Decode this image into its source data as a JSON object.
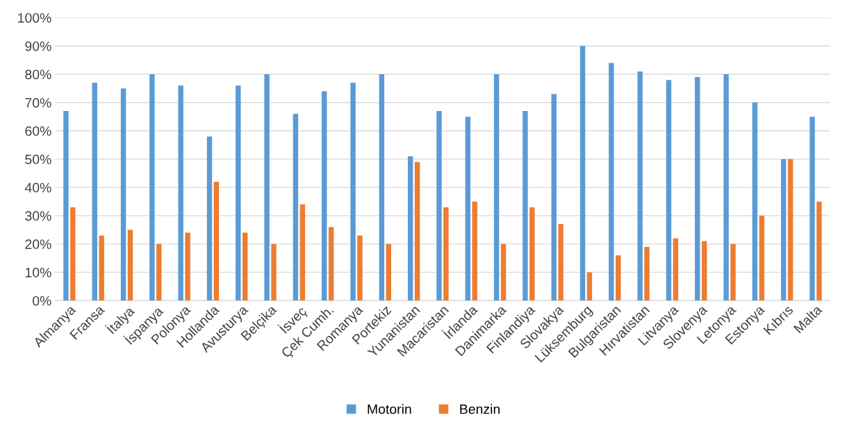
{
  "chart_data": {
    "type": "bar",
    "categories": [
      "Almanya",
      "Fransa",
      "İtalya",
      "İspanya",
      "Polonya",
      "Hollanda",
      "Avusturya",
      "Belçika",
      "İsveç",
      "Çek Cumh.",
      "Romanya",
      "Portekiz",
      "Yunanistan",
      "Macaristan",
      "İrlanda",
      "Danimarka",
      "Finlandiya",
      "Slovakya",
      "Lüksemburg",
      "Bulgaristan",
      "Hırvatistan",
      "Litvanya",
      "Slovenya",
      "Letonya",
      "Estonya",
      "Kıbrıs",
      "Malta"
    ],
    "series": [
      {
        "name": "Motorin",
        "color": "#5b9bd5",
        "values": [
          67,
          77,
          75,
          80,
          76,
          58,
          76,
          80,
          66,
          74,
          77,
          80,
          51,
          67,
          65,
          80,
          67,
          73,
          90,
          84,
          81,
          78,
          79,
          80,
          70,
          50,
          65
        ]
      },
      {
        "name": "Benzin",
        "color": "#ed7d31",
        "values": [
          33,
          23,
          25,
          20,
          24,
          42,
          24,
          20,
          34,
          26,
          23,
          20,
          49,
          33,
          35,
          20,
          33,
          27,
          10,
          16,
          19,
          22,
          21,
          20,
          30,
          50,
          35
        ]
      }
    ],
    "ylim": [
      0,
      100
    ],
    "yticks": [
      {
        "value": 0,
        "label": "0%"
      },
      {
        "value": 10,
        "label": "10%"
      },
      {
        "value": 20,
        "label": "20%"
      },
      {
        "value": 30,
        "label": "30%"
      },
      {
        "value": 40,
        "label": "40%"
      },
      {
        "value": 50,
        "label": "50%"
      },
      {
        "value": 60,
        "label": "60%"
      },
      {
        "value": 70,
        "label": "70%"
      },
      {
        "value": 80,
        "label": "80%"
      },
      {
        "value": 90,
        "label": "90%"
      },
      {
        "value": 100,
        "label": "100%"
      }
    ],
    "grid": "y",
    "legend": "bottom"
  }
}
